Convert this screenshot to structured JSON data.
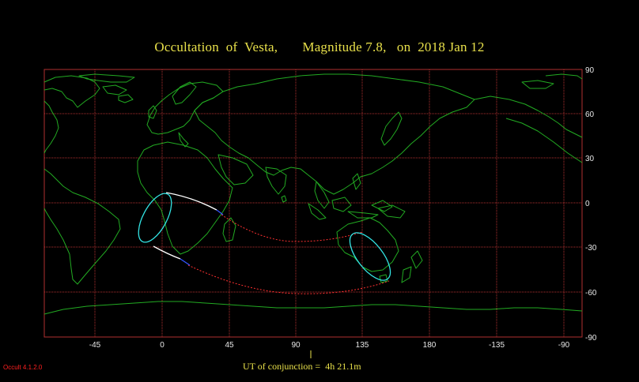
{
  "title": "Occultation  of  Vesta,       Magnitude 7.8,   on  2018 Jan 12",
  "ut_conjunction": "UT of conjunction =  4h 21.1m",
  "software_version": "Occult 4.1.2.0",
  "axes": {
    "longitude_ticks": [
      "-45",
      "0",
      "45",
      "90",
      "135",
      "180",
      "-135",
      "-90"
    ],
    "latitude_ticks": [
      "90",
      "60",
      "30",
      "0",
      "-30",
      "-60",
      "-90"
    ]
  },
  "colors": {
    "background": "#000000",
    "grid": "#b03030",
    "coastline": "#22aa22",
    "title": "#e8e04a",
    "central_path": "#ffffff",
    "path_limits": "#ff3030",
    "visibility_ellipse": "#33e5e5",
    "version_text": "#ff2020"
  }
}
